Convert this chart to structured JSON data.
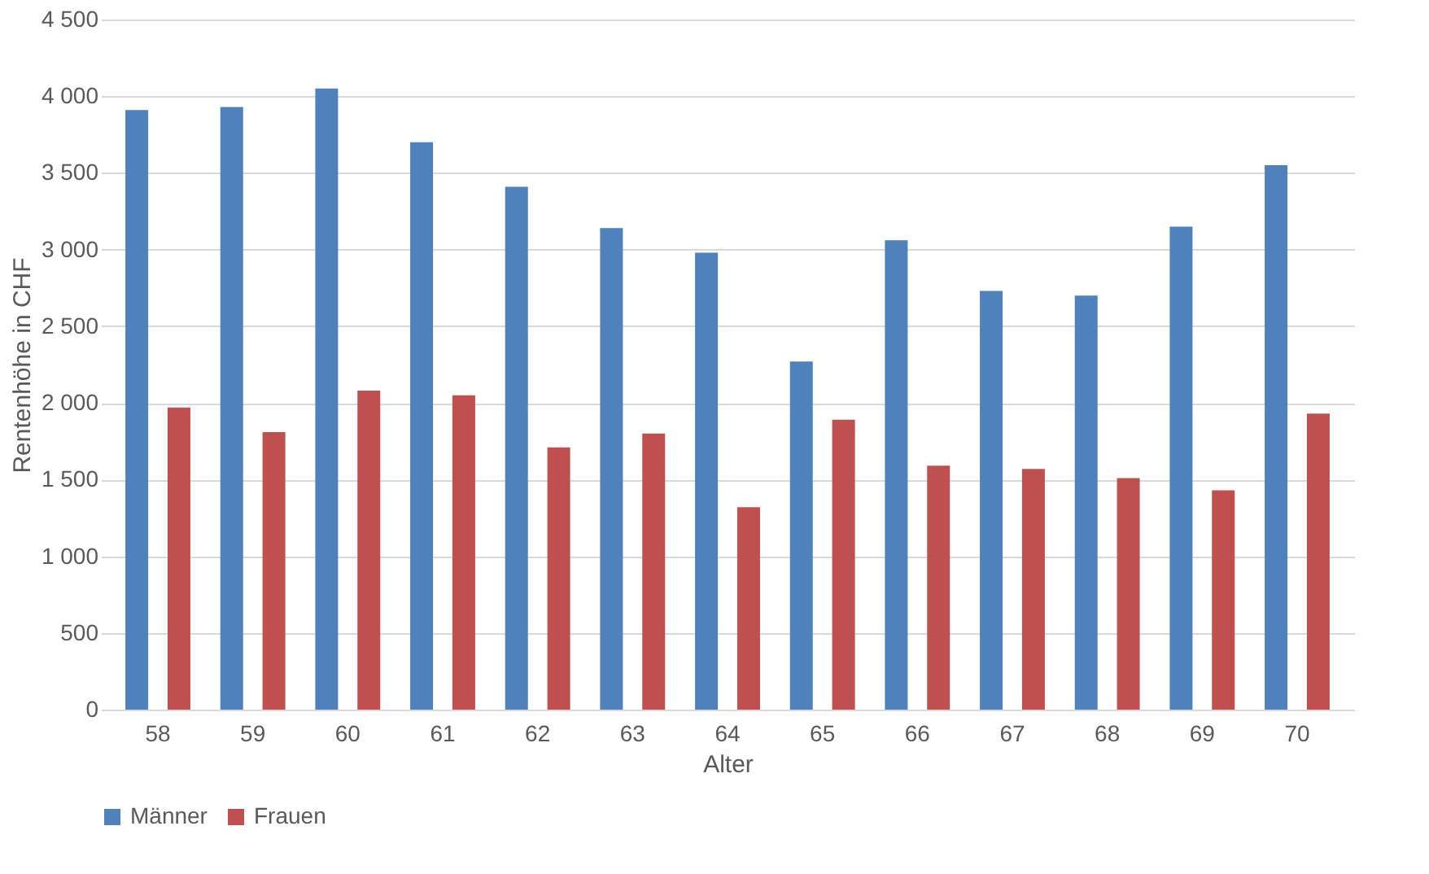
{
  "chart_data": {
    "type": "bar",
    "xlabel": "Alter",
    "ylabel": "Rentenhöhe in CHF",
    "categories": [
      "58",
      "59",
      "60",
      "61",
      "62",
      "63",
      "64",
      "65",
      "66",
      "67",
      "68",
      "69",
      "70"
    ],
    "series": [
      {
        "name": "Männer",
        "color": "#4f81bd",
        "values": [
          3910,
          3930,
          4050,
          3700,
          3410,
          3140,
          2980,
          2270,
          3060,
          2730,
          2700,
          3150,
          3550
        ]
      },
      {
        "name": "Frauen",
        "color": "#c0504d",
        "values": [
          1970,
          1810,
          2080,
          2050,
          1710,
          1800,
          1320,
          1890,
          1590,
          1570,
          1510,
          1430,
          1930
        ]
      }
    ],
    "ylim": [
      0,
      4500
    ],
    "yticks": [
      0,
      500,
      {
        "value": 1000,
        "label": "1 000"
      },
      {
        "value": 1500,
        "label": "1 500"
      },
      {
        "value": 2000,
        "label": "2 000"
      },
      {
        "value": 2500,
        "label": "2 500"
      },
      {
        "value": 3000,
        "label": "3 000"
      },
      {
        "value": 3500,
        "label": "3 500"
      },
      {
        "value": 4000,
        "label": "4 000"
      },
      {
        "value": 4500,
        "label": "4 500"
      }
    ],
    "grid": "y",
    "legend": "bottom"
  }
}
